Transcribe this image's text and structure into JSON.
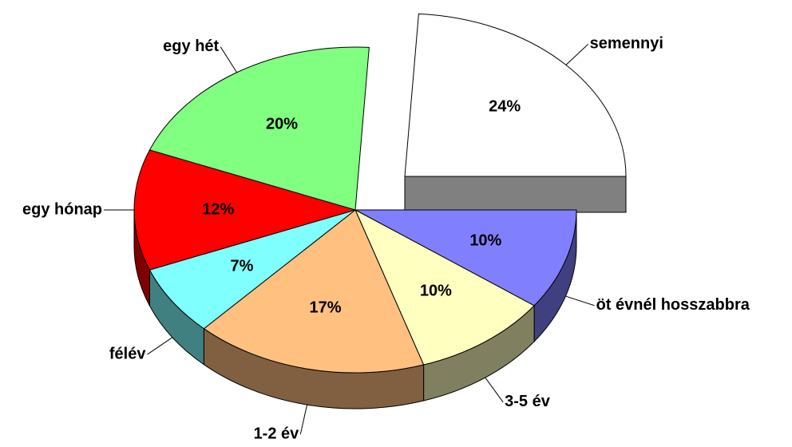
{
  "chart_data": {
    "type": "pie",
    "categories": [
      "semennyi",
      "öt évnél hosszabbra",
      "3-5 év",
      "1-2 év",
      "félév",
      "egy hónap",
      "egy hét"
    ],
    "values": [
      24,
      10,
      10,
      17,
      7,
      12,
      20
    ],
    "value_labels": [
      "24%",
      "10%",
      "10%",
      "17%",
      "7%",
      "12%",
      "20%"
    ],
    "colors": [
      "#FFFFFF",
      "#8080FF",
      "#FFFFC0",
      "#FFC080",
      "#80FFFF",
      "#FF0000",
      "#80FF80"
    ]
  }
}
